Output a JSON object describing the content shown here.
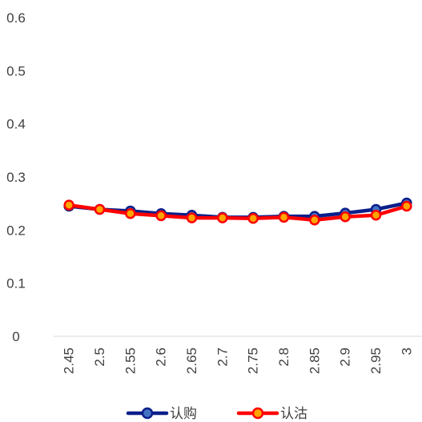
{
  "chart_data": {
    "type": "line",
    "categories": [
      "2.45",
      "2.5",
      "2.55",
      "2.6",
      "2.65",
      "2.7",
      "2.75",
      "2.8",
      "2.85",
      "2.9",
      "2.95",
      "3"
    ],
    "series": [
      {
        "name": "认购",
        "color": "#0b1f8a",
        "marker_fill": "#4472c4",
        "values": [
          0.245,
          0.239,
          0.236,
          0.231,
          0.228,
          0.224,
          0.224,
          0.226,
          0.226,
          0.232,
          0.239,
          0.251
        ]
      },
      {
        "name": "认沽",
        "color": "#ff0000",
        "marker_fill": "#ffa500",
        "values": [
          0.247,
          0.239,
          0.231,
          0.227,
          0.223,
          0.223,
          0.222,
          0.224,
          0.219,
          0.225,
          0.228,
          0.245
        ]
      }
    ],
    "yticks": [
      "0",
      "0.1",
      "0.2",
      "0.3",
      "0.4",
      "0.5",
      "0.6"
    ],
    "ylim": [
      0,
      0.6
    ],
    "grid": false,
    "legend_position": "bottom"
  }
}
